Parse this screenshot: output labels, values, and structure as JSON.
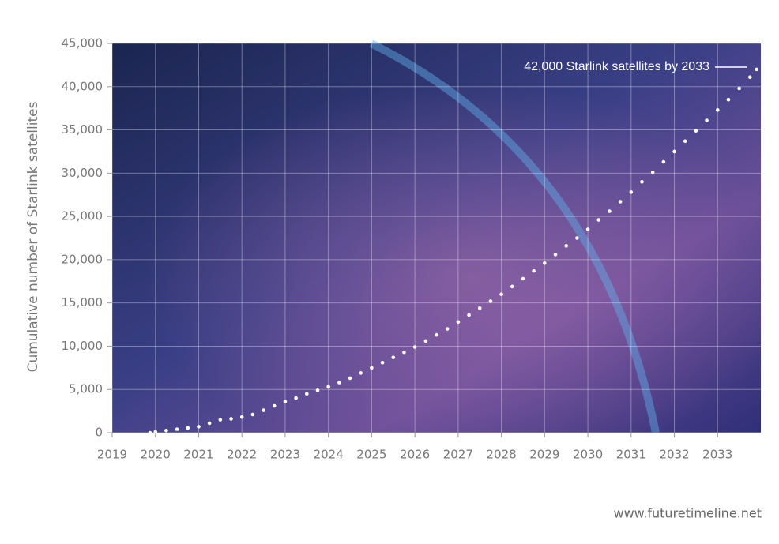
{
  "chart_data": {
    "type": "scatter",
    "y_label": "Cumulative number of Starlink satellites",
    "annotation": "42,000 Starlink satellites by 2033",
    "source": "www.futuretimeline.net",
    "xlim": [
      2019,
      2034
    ],
    "xticks": [
      2019,
      2020,
      2021,
      2022,
      2023,
      2024,
      2025,
      2026,
      2027,
      2028,
      2029,
      2030,
      2031,
      2032,
      2033
    ],
    "ylim": [
      0,
      45000
    ],
    "yticks": [
      0,
      {
        "value": 5000,
        "label": "5,000"
      },
      {
        "value": 10000,
        "label": "10,000"
      },
      {
        "value": 15000,
        "label": "15,000"
      },
      {
        "value": 20000,
        "label": "20,000"
      },
      {
        "value": 25000,
        "label": "25,000"
      },
      {
        "value": 30000,
        "label": "30,000"
      },
      {
        "value": 35000,
        "label": "35,000"
      },
      {
        "value": 40000,
        "label": "40,000"
      },
      {
        "value": 45000,
        "label": "45,000"
      }
    ],
    "grid": true,
    "color": "#ffffff",
    "x": [
      2019.875,
      2020.0,
      2020.25,
      2020.5,
      2020.75,
      2021.0,
      2021.25,
      2021.5,
      2021.75,
      2022.0,
      2022.25,
      2022.5,
      2022.75,
      2023.0,
      2023.25,
      2023.5,
      2023.75,
      2024.0,
      2024.25,
      2024.5,
      2024.75,
      2025.0,
      2025.25,
      2025.5,
      2025.75,
      2026.0,
      2026.25,
      2026.5,
      2026.75,
      2027.0,
      2027.25,
      2027.5,
      2027.75,
      2028.0,
      2028.25,
      2028.5,
      2028.75,
      2029.0,
      2029.25,
      2029.5,
      2029.75,
      2030.0,
      2030.25,
      2030.5,
      2030.75,
      2031.0,
      2031.25,
      2031.5,
      2031.75,
      2032.0,
      2032.25,
      2032.5,
      2032.75,
      2033.0,
      2033.25,
      2033.5,
      2033.75,
      2033.9
    ],
    "values": [
      0,
      100,
      250,
      400,
      550,
      700,
      1100,
      1500,
      1600,
      1800,
      2100,
      2600,
      3100,
      3600,
      4000,
      4500,
      4900,
      5300,
      5800,
      6300,
      6900,
      7500,
      8100,
      8700,
      9300,
      9900,
      10600,
      11300,
      12000,
      12800,
      13600,
      14400,
      15200,
      16000,
      16900,
      17800,
      18700,
      19600,
      20600,
      21600,
      22500,
      23500,
      24600,
      25600,
      26700,
      27800,
      29000,
      30100,
      31300,
      32500,
      33700,
      34900,
      36100,
      37300,
      38500,
      39800,
      41100,
      42000
    ]
  }
}
